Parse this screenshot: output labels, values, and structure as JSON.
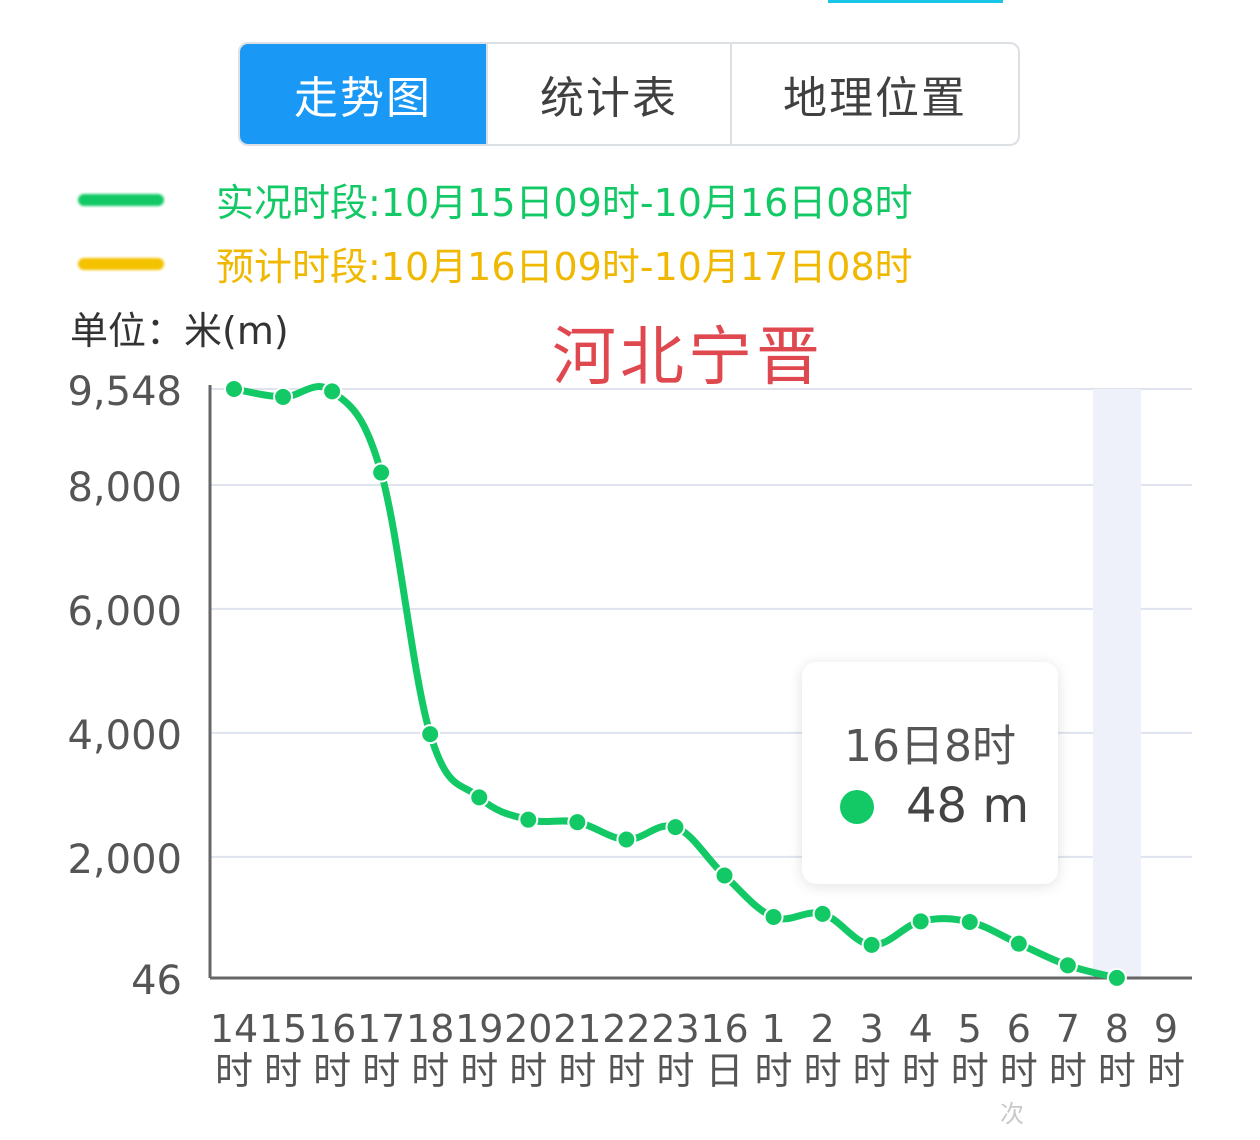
{
  "tabs": [
    {
      "label": "走势图",
      "active": true
    },
    {
      "label": "统计表",
      "active": false
    },
    {
      "label": "地理位置",
      "active": false
    }
  ],
  "legend": [
    {
      "text": "实况时段:10月15日09时-10月16日08时",
      "color": "#12c966"
    },
    {
      "text": "预计时段:10月16日09时-10月17日08时",
      "color": "#f5c200"
    }
  ],
  "unit_label": "单位：米(m)",
  "region_label": "河北宁晋",
  "tooltip": {
    "title": "16日8时",
    "value": "48 m"
  },
  "watermark": "次",
  "colors": {
    "line": "#12c966",
    "grid": "#dfe3ee",
    "axis": "#666666",
    "highlight": "#eef1fa"
  },
  "chart_data": {
    "type": "line",
    "ylim": [
      46,
      9548
    ],
    "y_ticks": [
      {
        "value": 46,
        "label": "46"
      },
      {
        "value": 2000,
        "label": "2,000"
      },
      {
        "value": 4000,
        "label": "4,000"
      },
      {
        "value": 6000,
        "label": "6,000"
      },
      {
        "value": 8000,
        "label": "8,000"
      },
      {
        "value": 9548,
        "label": "9,548"
      }
    ],
    "categories": [
      [
        "14",
        "时"
      ],
      [
        "15",
        "时"
      ],
      [
        "16",
        "时"
      ],
      [
        "17",
        "时"
      ],
      [
        "18",
        "时"
      ],
      [
        "19",
        "时"
      ],
      [
        "20",
        "时"
      ],
      [
        "21",
        "时"
      ],
      [
        "22",
        "时"
      ],
      [
        "23",
        "时"
      ],
      [
        "16",
        "日"
      ],
      [
        "1",
        "时"
      ],
      [
        "2",
        "时"
      ],
      [
        "3",
        "时"
      ],
      [
        "4",
        "时"
      ],
      [
        "5",
        "时"
      ],
      [
        "6",
        "时"
      ],
      [
        "7",
        "时"
      ],
      [
        "8",
        "时"
      ],
      [
        "9",
        "时"
      ]
    ],
    "series": [
      {
        "values": [
          9548,
          9420,
          9510,
          8200,
          3980,
          2960,
          2600,
          2560,
          2280,
          2480,
          1700,
          1030,
          1080,
          580,
          960,
          950,
          600,
          250,
          48,
          null
        ]
      }
    ],
    "highlight_index": 18
  }
}
